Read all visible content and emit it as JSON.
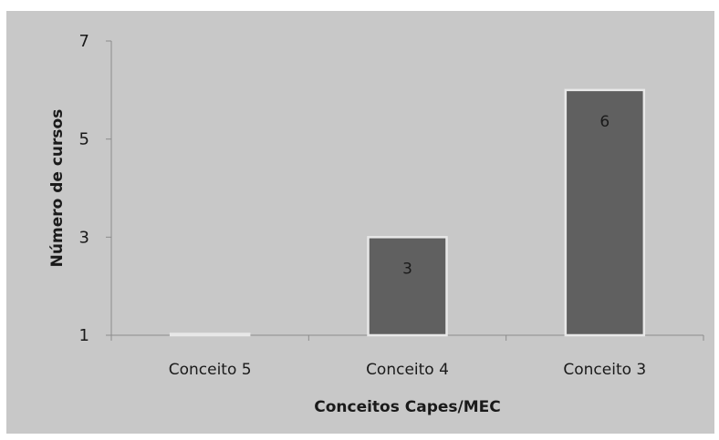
{
  "chart_data": {
    "type": "bar",
    "title": "",
    "xlabel": "Conceitos Capes/MEC",
    "ylabel": "Número de cursos",
    "categories": [
      "Conceito 5",
      "Conceito 4",
      "Conceito 3"
    ],
    "values": [
      1,
      3,
      6
    ],
    "data_labels": [
      "",
      "3",
      "6"
    ],
    "yticks": [
      1,
      3,
      5,
      7
    ],
    "ylim": [
      1,
      7
    ],
    "grid": false,
    "legend": "none",
    "colors": {
      "panel_background": "#c8c8c8",
      "bar_fill": "#606060",
      "bar_edge": "#e8e8e8",
      "axis": "#8c8c8c",
      "text": "#1a1a1a"
    }
  }
}
